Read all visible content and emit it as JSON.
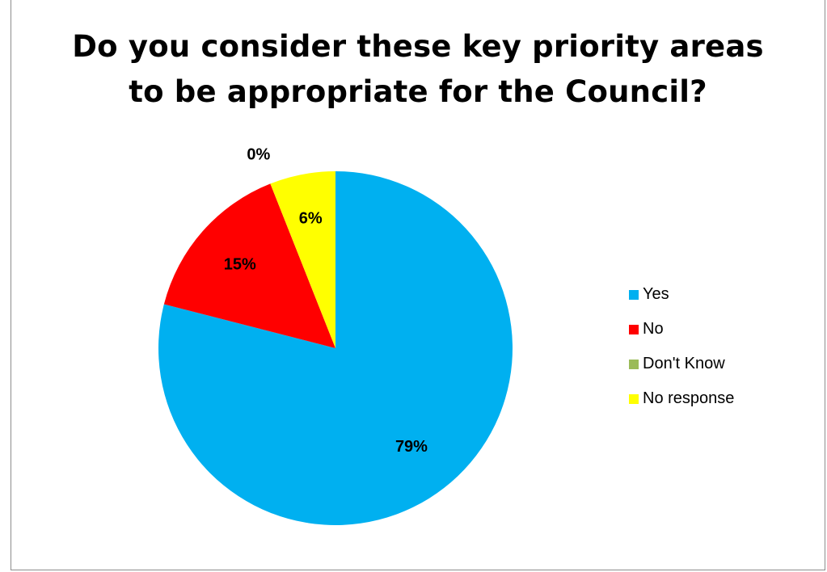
{
  "chart_data": {
    "type": "pie",
    "title_lines": [
      "Do you consider these key priority areas",
      "to be appropriate for the Council?"
    ],
    "categories": [
      "Yes",
      "No",
      "Don't Know",
      "No response"
    ],
    "values": [
      79,
      15,
      0,
      6
    ],
    "labels": [
      "79%",
      "15%",
      "0%",
      "6%"
    ],
    "colors": [
      "#00b0f0",
      "#ff0000",
      "#9bbb59",
      "#ffff00"
    ],
    "legend_position": "right",
    "start_angle": "12 o'clock",
    "direction": "clockwise"
  }
}
